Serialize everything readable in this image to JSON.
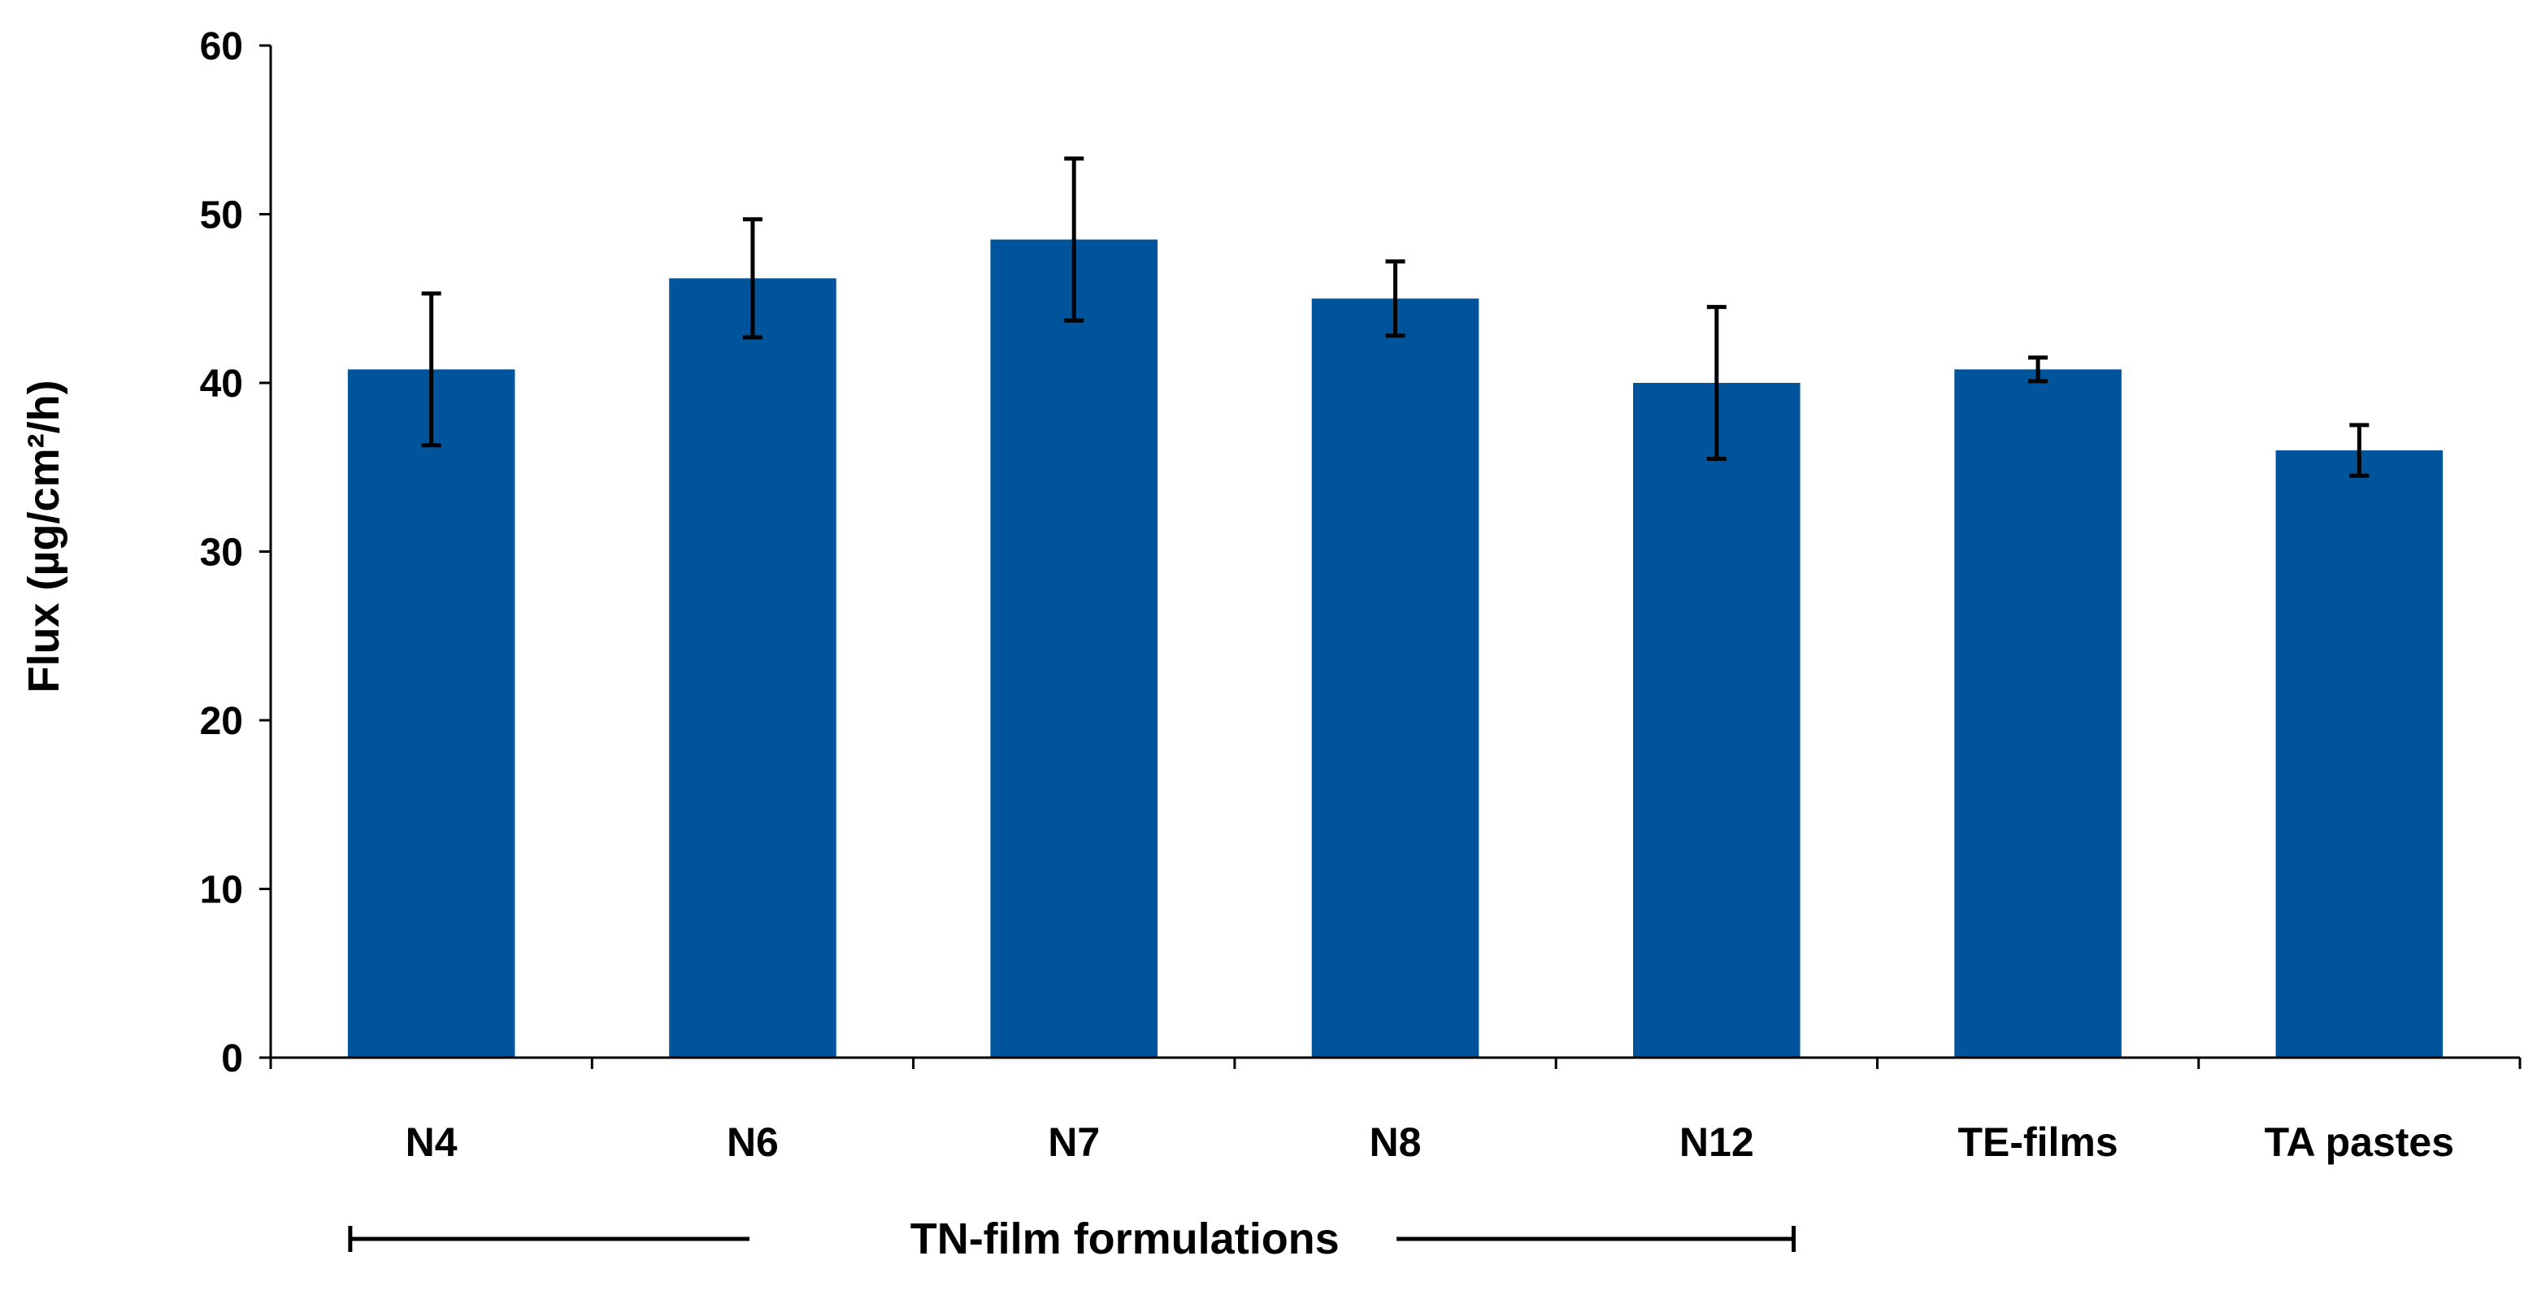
{
  "chart_data": {
    "type": "bar",
    "title": "",
    "xlabel": "",
    "ylabel": "Flux (µg/cm²/h)",
    "ylim": [
      0,
      60
    ],
    "yticks": [
      0,
      10,
      20,
      30,
      40,
      50,
      60
    ],
    "grid": false,
    "legend": "none",
    "categories": [
      "N4",
      "N6",
      "N7",
      "N8",
      "N12",
      "TE-films",
      "TA pastes"
    ],
    "values": [
      40.8,
      46.2,
      48.5,
      45.0,
      40.0,
      40.8,
      36.0
    ],
    "error": [
      4.5,
      3.5,
      4.8,
      2.2,
      4.5,
      0.7,
      1.5
    ],
    "bar_color": "#00549b",
    "error_bar_color": "#000000",
    "group_annotation": {
      "label": "TN-film formulations",
      "from_category": "N4",
      "to_category": "N12"
    }
  }
}
